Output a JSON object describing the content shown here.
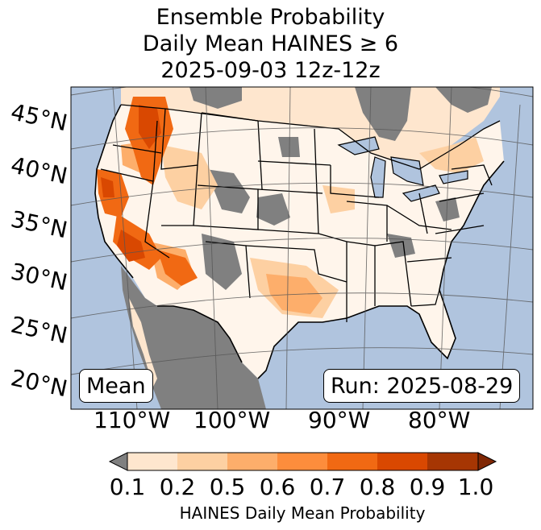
{
  "title": {
    "line1": "Ensemble Probability",
    "line2": "Daily Mean HAINES ≥ 6",
    "line3": "2025-09-03 12z-12z"
  },
  "map": {
    "lat_labels": [
      "45°N",
      "40°N",
      "35°N",
      "30°N",
      "25°N",
      "20°N"
    ],
    "lon_labels": [
      "110°W",
      "100°W",
      "90°W",
      "80°W"
    ],
    "stat_label": "Mean",
    "run_label": "Run: 2025-08-29",
    "colors": {
      "ocean": "#b0c4de",
      "no_data": "#808080",
      "land_low": "#fff5eb"
    }
  },
  "colorbar": {
    "ticks": [
      "0.1",
      "0.2",
      "0.5",
      "0.6",
      "0.7",
      "0.8",
      "0.9",
      "1.0"
    ],
    "colors": [
      "#fee6ce",
      "#fdd0a2",
      "#fdae6b",
      "#fd8d3c",
      "#f16913",
      "#d94801",
      "#a63603"
    ],
    "under_color": "#808080",
    "over_color": "#7f2704",
    "label": "HAINES Daily Mean Probability"
  }
}
